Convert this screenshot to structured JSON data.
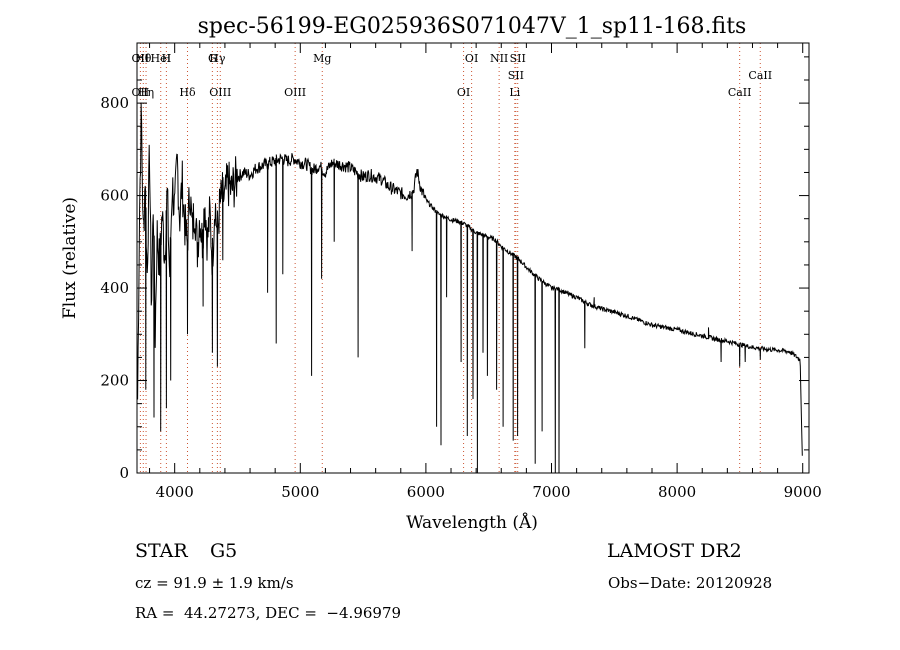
{
  "chart_data": {
    "type": "line",
    "title": "spec-56199-EG025936S071047V_1_sp11-168.fits",
    "xlabel": "Wavelength (Å)",
    "ylabel": "Flux (relative)",
    "xlim": [
      3700,
      9050
    ],
    "ylim": [
      0,
      930
    ],
    "x_ticks": [
      4000,
      5000,
      6000,
      7000,
      8000,
      9000
    ],
    "y_ticks": [
      0,
      200,
      400,
      600,
      800
    ],
    "grid": false,
    "line_color": "#000000",
    "marker_line_color": "#cc5533",
    "continuum": [
      [
        3705,
        160
      ],
      [
        3720,
        560
      ],
      [
        3735,
        790
      ],
      [
        3750,
        500
      ],
      [
        3765,
        650
      ],
      [
        3780,
        420
      ],
      [
        3800,
        700
      ],
      [
        3815,
        350
      ],
      [
        3830,
        600
      ],
      [
        3845,
        300
      ],
      [
        3860,
        520
      ],
      [
        3880,
        450
      ],
      [
        3900,
        560
      ],
      [
        3920,
        470
      ],
      [
        3940,
        610
      ],
      [
        3960,
        420
      ],
      [
        3980,
        630
      ],
      [
        4000,
        560
      ],
      [
        4020,
        680
      ],
      [
        4040,
        550
      ],
      [
        4060,
        630
      ],
      [
        4080,
        540
      ],
      [
        4100,
        490
      ],
      [
        4120,
        620
      ],
      [
        4140,
        520
      ],
      [
        4160,
        580
      ],
      [
        4180,
        480
      ],
      [
        4200,
        560
      ],
      [
        4220,
        500
      ],
      [
        4240,
        590
      ],
      [
        4260,
        500
      ],
      [
        4280,
        560
      ],
      [
        4300,
        460
      ],
      [
        4320,
        590
      ],
      [
        4340,
        520
      ],
      [
        4360,
        580
      ],
      [
        4380,
        600
      ],
      [
        4400,
        590
      ],
      [
        4420,
        630
      ],
      [
        4450,
        610
      ],
      [
        4500,
        640
      ],
      [
        4550,
        650
      ],
      [
        4600,
        645
      ],
      [
        4650,
        660
      ],
      [
        4700,
        665
      ],
      [
        4750,
        670
      ],
      [
        4800,
        675
      ],
      [
        4850,
        680
      ],
      [
        4900,
        675
      ],
      [
        4950,
        680
      ],
      [
        5000,
        672
      ],
      [
        5050,
        668
      ],
      [
        5100,
        655
      ],
      [
        5150,
        665
      ],
      [
        5200,
        650
      ],
      [
        5250,
        670
      ],
      [
        5300,
        668
      ],
      [
        5350,
        665
      ],
      [
        5400,
        660
      ],
      [
        5450,
        650
      ],
      [
        5500,
        640
      ],
      [
        5550,
        645
      ],
      [
        5600,
        640
      ],
      [
        5650,
        635
      ],
      [
        5700,
        620
      ],
      [
        5750,
        612
      ],
      [
        5800,
        605
      ],
      [
        5850,
        600
      ],
      [
        5900,
        610
      ],
      [
        5930,
        655
      ],
      [
        5960,
        615
      ],
      [
        6000,
        590
      ],
      [
        6050,
        575
      ],
      [
        6100,
        560
      ],
      [
        6150,
        555
      ],
      [
        6200,
        548
      ],
      [
        6250,
        545
      ],
      [
        6300,
        540
      ],
      [
        6350,
        530
      ],
      [
        6400,
        520
      ],
      [
        6450,
        515
      ],
      [
        6500,
        510
      ],
      [
        6550,
        505
      ],
      [
        6600,
        490
      ],
      [
        6650,
        480
      ],
      [
        6700,
        470
      ],
      [
        6750,
        460
      ],
      [
        6800,
        445
      ],
      [
        6850,
        432
      ],
      [
        6900,
        420
      ],
      [
        6950,
        410
      ],
      [
        7000,
        400
      ],
      [
        7050,
        398
      ],
      [
        7100,
        392
      ],
      [
        7150,
        385
      ],
      [
        7200,
        380
      ],
      [
        7250,
        372
      ],
      [
        7300,
        365
      ],
      [
        7400,
        355
      ],
      [
        7500,
        348
      ],
      [
        7600,
        340
      ],
      [
        7700,
        330
      ],
      [
        7800,
        320
      ],
      [
        7900,
        315
      ],
      [
        8000,
        310
      ],
      [
        8100,
        303
      ],
      [
        8200,
        297
      ],
      [
        8300,
        290
      ],
      [
        8400,
        285
      ],
      [
        8500,
        278
      ],
      [
        8600,
        272
      ],
      [
        8700,
        268
      ],
      [
        8800,
        266
      ],
      [
        8900,
        262
      ],
      [
        8980,
        245
      ],
      [
        8995,
        60
      ],
      [
        9000,
        10
      ]
    ],
    "absorption_lines": [
      {
        "x": 3770,
        "y": 180
      },
      {
        "x": 3835,
        "y": 120
      },
      {
        "x": 3889,
        "y": 90
      },
      {
        "x": 3934,
        "y": 140
      },
      {
        "x": 3968,
        "y": 200
      },
      {
        "x": 4102,
        "y": 300
      },
      {
        "x": 4226,
        "y": 360
      },
      {
        "x": 4300,
        "y": 260
      },
      {
        "x": 4340,
        "y": 230
      },
      {
        "x": 4383,
        "y": 460
      },
      {
        "x": 4740,
        "y": 390
      },
      {
        "x": 4808,
        "y": 280
      },
      {
        "x": 4861,
        "y": 430
      },
      {
        "x": 5090,
        "y": 210
      },
      {
        "x": 5170,
        "y": 420
      },
      {
        "x": 5270,
        "y": 500
      },
      {
        "x": 5460,
        "y": 250
      },
      {
        "x": 5890,
        "y": 480
      },
      {
        "x": 6085,
        "y": 100
      },
      {
        "x": 6120,
        "y": 60
      },
      {
        "x": 6165,
        "y": 380
      },
      {
        "x": 6280,
        "y": 240
      },
      {
        "x": 6330,
        "y": 80
      },
      {
        "x": 6375,
        "y": 160
      },
      {
        "x": 6410,
        "y": 0
      },
      {
        "x": 6455,
        "y": 260
      },
      {
        "x": 6490,
        "y": 210
      },
      {
        "x": 6563,
        "y": 180
      },
      {
        "x": 6615,
        "y": 100
      },
      {
        "x": 6695,
        "y": 70
      },
      {
        "x": 6730,
        "y": 80
      },
      {
        "x": 6870,
        "y": 20
      },
      {
        "x": 6925,
        "y": 90
      },
      {
        "x": 7030,
        "y": 0
      },
      {
        "x": 7060,
        "y": 0
      },
      {
        "x": 7265,
        "y": 270
      },
      {
        "x": 8350,
        "y": 240
      },
      {
        "x": 8498,
        "y": 230
      },
      {
        "x": 8542,
        "y": 240
      },
      {
        "x": 8662,
        "y": 245
      }
    ],
    "emission_spikes": [
      {
        "x": 8250,
        "y": 315
      },
      {
        "x": 7340,
        "y": 380
      }
    ],
    "line_markers": [
      {
        "x": 3727,
        "top": "OII",
        "bottom": "OII"
      },
      {
        "x": 3750,
        "top": "Hθ"
      },
      {
        "x": 3772,
        "bottom": "Hη"
      },
      {
        "x": 3889,
        "top": "HeI"
      },
      {
        "x": 3934,
        "top": "H"
      },
      {
        "x": 4102,
        "bottom": "Hδ"
      },
      {
        "x": 4300,
        "top": "G"
      },
      {
        "x": 4340,
        "top": "Hγ"
      },
      {
        "x": 4363,
        "bottom": "OIII"
      },
      {
        "x": 4959,
        "bottom": "OIII"
      },
      {
        "x": 5175,
        "top": "Mg"
      },
      {
        "x": 6300,
        "bottom": "OI"
      },
      {
        "x": 6364,
        "top": "OI"
      },
      {
        "x": 6583,
        "top": "NII"
      },
      {
        "x": 6708,
        "bottom": "Li"
      },
      {
        "x": 6716,
        "mid": "SII"
      },
      {
        "x": 6731,
        "top": "SII"
      },
      {
        "x": 8498,
        "bottom": "CaII"
      },
      {
        "x": 8662,
        "mid": "CaII"
      }
    ]
  },
  "info": {
    "object_class": "STAR",
    "subclass": "G5",
    "survey": "LAMOST DR2",
    "cz": "cz = 91.9 ± 1.9 km/s",
    "obs_date": "Obs−Date: 20120928",
    "coords": "RA =  44.27273, DEC =  −4.96979"
  }
}
